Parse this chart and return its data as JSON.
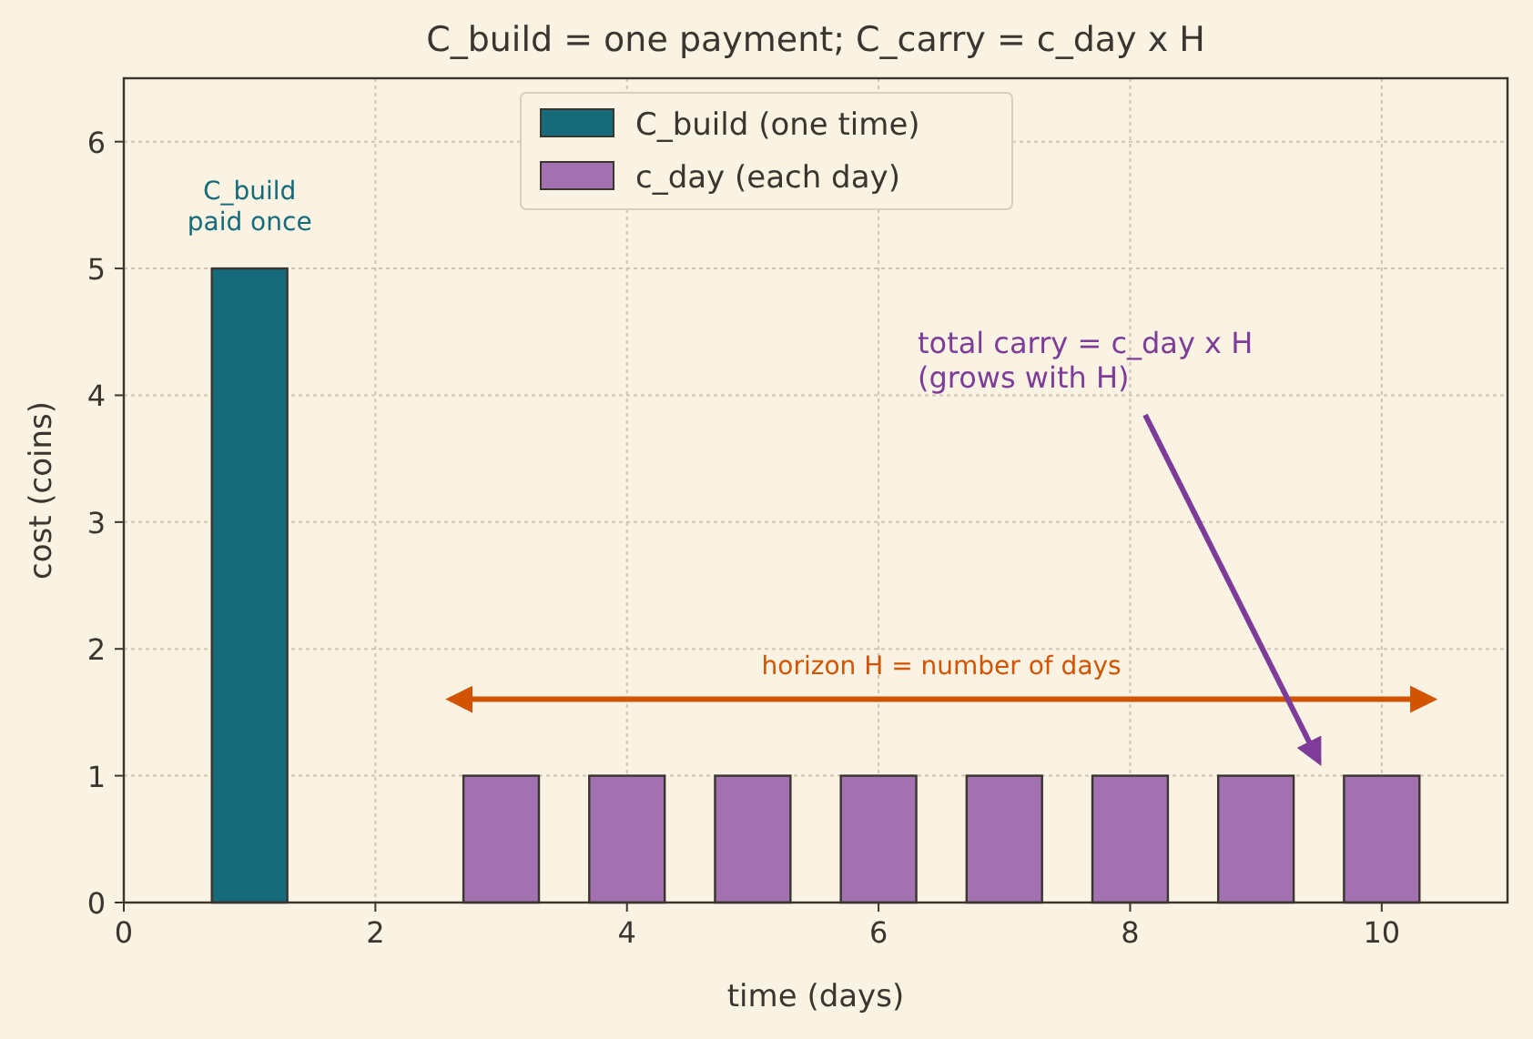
{
  "chart_data": {
    "type": "bar",
    "title": "C_build = one payment; C_carry = c_day x H",
    "xlabel": "time (days)",
    "ylabel": "cost (coins)",
    "series": [
      {
        "name": "C_build (one time)",
        "color": "#156b7a",
        "x": [
          1
        ],
        "values": [
          5
        ]
      },
      {
        "name": "c_day (each day)",
        "color": "#a271b0",
        "x": [
          3,
          4,
          5,
          6,
          7,
          8,
          9,
          10
        ],
        "values": [
          1,
          1,
          1,
          1,
          1,
          1,
          1,
          1
        ]
      }
    ],
    "xlim": [
      0,
      11
    ],
    "ylim": [
      0,
      6.5
    ],
    "xticks": [
      0,
      2,
      4,
      6,
      8,
      10
    ],
    "yticks": [
      0,
      1,
      2,
      3,
      4,
      5,
      6
    ],
    "grid": true,
    "legend": "top",
    "annotations": [
      "C_build\npaid once",
      "horizon H = number of days",
      "total carry = c_day x H\n(grows with H)"
    ]
  }
}
